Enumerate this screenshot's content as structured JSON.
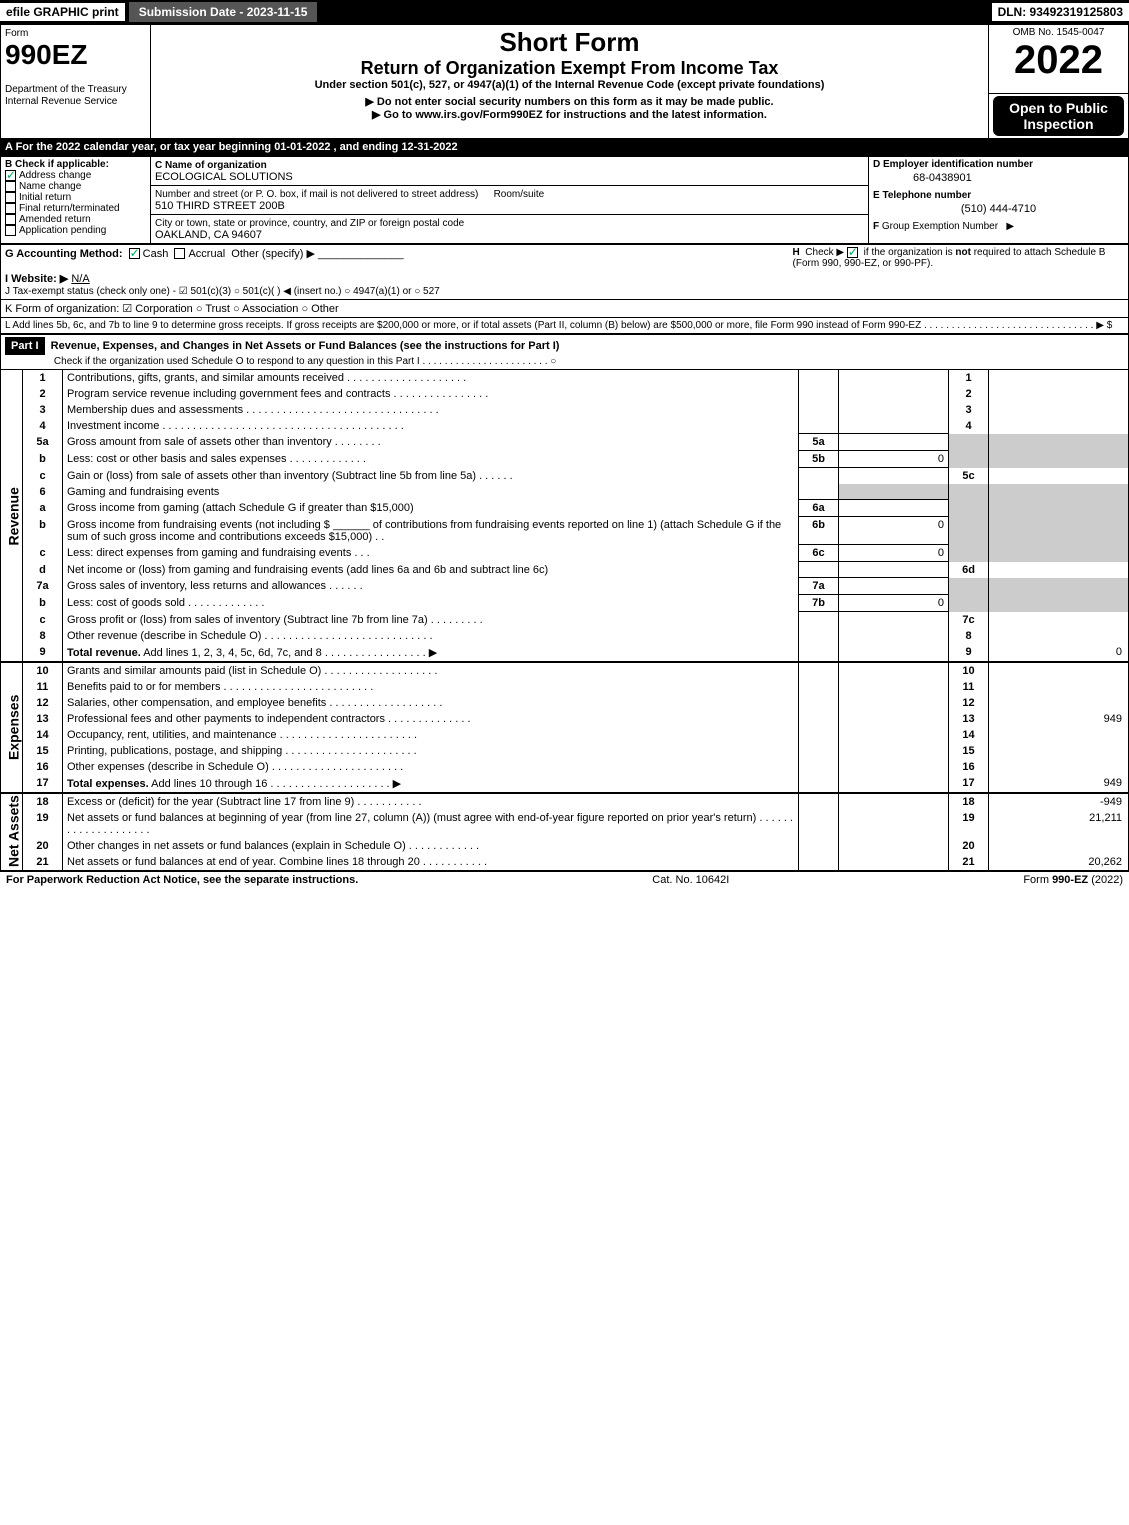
{
  "topbar": {
    "efile": "efile GRAPHIC print",
    "submission": "Submission Date - 2023-11-15",
    "dln": "DLN: 93492319125803"
  },
  "header": {
    "form_word": "Form",
    "form_no": "990EZ",
    "dept": "Department of the Treasury\nInternal Revenue Service",
    "short_form": "Short Form",
    "title": "Return of Organization Exempt From Income Tax",
    "subtitle": "Under section 501(c), 527, or 4947(a)(1) of the Internal Revenue Code (except private foundations)",
    "warn": "▶ Do not enter social security numbers on this form as it may be made public.",
    "goto": "▶ Go to www.irs.gov/Form990EZ for instructions and the latest information.",
    "omb": "OMB No. 1545-0047",
    "year": "2022",
    "open": "Open to Public Inspection"
  },
  "secA": "A  For the 2022 calendar year, or tax year beginning 01-01-2022  , and ending 12-31-2022",
  "secB": {
    "title": "B  Check if applicable:",
    "items": [
      "Address change",
      "Name change",
      "Initial return",
      "Final return/terminated",
      "Amended return",
      "Application pending"
    ],
    "checked": [
      true,
      false,
      false,
      false,
      false,
      false
    ]
  },
  "secC": {
    "label_name": "C Name of organization",
    "name": "ECOLOGICAL SOLUTIONS",
    "label_addr": "Number and street (or P. O. box, if mail is not delivered to street address)",
    "addr": "510 THIRD STREET 200B",
    "room_label": "Room/suite",
    "label_city": "City or town, state or province, country, and ZIP or foreign postal code",
    "city": "OAKLAND, CA  94607"
  },
  "secD": {
    "label": "D Employer identification number",
    "ein": "68-0438901"
  },
  "secE": {
    "label": "E Telephone number",
    "phone": "(510) 444-4710"
  },
  "secF": {
    "label": "F Group Exemption Number  ▶"
  },
  "secG": {
    "label": "G Accounting Method:",
    "cash": "Cash",
    "accrual": "Accrual",
    "other": "Other (specify) ▶"
  },
  "secH": {
    "text": "H  Check ▶ ☑ if the organization is not required to attach Schedule B (Form 990, 990-EZ, or 990-PF)."
  },
  "secI": {
    "label": "I Website: ▶",
    "val": "N/A"
  },
  "secJ": "J Tax-exempt status (check only one) - ☑ 501(c)(3)  ○ 501(c)(  ) ◀ (insert no.)  ○ 4947(a)(1) or  ○ 527",
  "secK": "K Form of organization:  ☑ Corporation  ○ Trust  ○ Association  ○ Other",
  "secL": "L Add lines 5b, 6c, and 7b to line 9 to determine gross receipts. If gross receipts are $200,000 or more, or if total assets (Part II, column (B) below) are $500,000 or more, file Form 990 instead of Form 990-EZ . . . . . . . . . . . . . . . . . . . . . . . . . . . . . . . ▶ $",
  "partI": {
    "label": "Part I",
    "title": "Revenue, Expenses, and Changes in Net Assets or Fund Balances (see the instructions for Part I)",
    "check": "Check if the organization used Schedule O to respond to any question in this Part I . . . . . . . . . . . . . . . . . . . . . . . ○"
  },
  "revenue_label": "Revenue",
  "expenses_label": "Expenses",
  "netassets_label": "Net Assets",
  "lines": {
    "1": {
      "n": "1",
      "t": "Contributions, gifts, grants, and similar amounts received . . . . . . . . . . . . . . . . . . . .",
      "box": "1",
      "v": ""
    },
    "2": {
      "n": "2",
      "t": "Program service revenue including government fees and contracts . . . . . . . . . . . . . . . .",
      "box": "2",
      "v": ""
    },
    "3": {
      "n": "3",
      "t": "Membership dues and assessments . . . . . . . . . . . . . . . . . . . . . . . . . . . . . . . .",
      "box": "3",
      "v": ""
    },
    "4": {
      "n": "4",
      "t": "Investment income . . . . . . . . . . . . . . . . . . . . . . . . . . . . . . . . . . . . . . . .",
      "box": "4",
      "v": ""
    },
    "5a": {
      "n": "5a",
      "t": "Gross amount from sale of assets other than inventory . . . . . . . .",
      "ibox": "5a",
      "iv": ""
    },
    "5b": {
      "n": "b",
      "t": "Less: cost or other basis and sales expenses . . . . . . . . . . . . .",
      "ibox": "5b",
      "iv": "0"
    },
    "5c": {
      "n": "c",
      "t": "Gain or (loss) from sale of assets other than inventory (Subtract line 5b from line 5a) . . . . . .",
      "box": "5c",
      "v": ""
    },
    "6": {
      "n": "6",
      "t": "Gaming and fundraising events"
    },
    "6a": {
      "n": "a",
      "t": "Gross income from gaming (attach Schedule G if greater than $15,000)",
      "ibox": "6a",
      "iv": ""
    },
    "6b": {
      "n": "b",
      "t1": "Gross income from fundraising events (not including $",
      "t2": "of contributions from fundraising events reported on line 1) (attach Schedule G if the sum of such gross income and contributions exceeds $15,000)   .   .",
      "ibox": "6b",
      "iv": "0"
    },
    "6c": {
      "n": "c",
      "t": "Less: direct expenses from gaming and fundraising events   .   .   .",
      "ibox": "6c",
      "iv": "0"
    },
    "6d": {
      "n": "d",
      "t": "Net income or (loss) from gaming and fundraising events (add lines 6a and 6b and subtract line 6c)",
      "box": "6d",
      "v": ""
    },
    "7a": {
      "n": "7a",
      "t": "Gross sales of inventory, less returns and allowances . . . . . .",
      "ibox": "7a",
      "iv": ""
    },
    "7b": {
      "n": "b",
      "t": "Less: cost of goods sold       .   .   .   .   .   .   .   .   .   .   .   .   .",
      "ibox": "7b",
      "iv": "0"
    },
    "7c": {
      "n": "c",
      "t": "Gross profit or (loss) from sales of inventory (Subtract line 7b from line 7a) . . . . . . . . .",
      "box": "7c",
      "v": ""
    },
    "8": {
      "n": "8",
      "t": "Other revenue (describe in Schedule O) . . . . . . . . . . . . . . . . . . . . . . . . . . . .",
      "box": "8",
      "v": ""
    },
    "9": {
      "n": "9",
      "t": "Total revenue. Add lines 1, 2, 3, 4, 5c, 6d, 7c, and 8  .  .  .  .  .  .  .  .  .  .  .  .  .  .  .  .  .  ▶",
      "box": "9",
      "v": "0"
    },
    "10": {
      "n": "10",
      "t": "Grants and similar amounts paid (list in Schedule O) .  .  .  .  .  .  .  .  .  .  .  .  .  .  .  .  .  .  .",
      "box": "10",
      "v": ""
    },
    "11": {
      "n": "11",
      "t": "Benefits paid to or for members     .  .  .  .  .  .  .  .  .  .  .  .  .  .  .  .  .  .  .  .  .  .  .  .  .",
      "box": "11",
      "v": ""
    },
    "12": {
      "n": "12",
      "t": "Salaries, other compensation, and employee benefits . .  .  .  .  .  .  .  .  .  .  .  .  .  .  .  .  .  .",
      "box": "12",
      "v": ""
    },
    "13": {
      "n": "13",
      "t": "Professional fees and other payments to independent contractors .  .  .  .  .  .  .  .  .  .  .  .  .  .",
      "box": "13",
      "v": "949"
    },
    "14": {
      "n": "14",
      "t": "Occupancy, rent, utilities, and maintenance .  .  .  .  .  .  .  .  .  .  .  .  .  .  .  .  .  .  .  .  .  .  .",
      "box": "14",
      "v": ""
    },
    "15": {
      "n": "15",
      "t": "Printing, publications, postage, and shipping .  .  .  .  .  .  .  .  .  .  .  .  .  .  .  .  .  .  .  .  .  .",
      "box": "15",
      "v": ""
    },
    "16": {
      "n": "16",
      "t": "Other expenses (describe in Schedule O)    .  .  .  .  .  .  .  .  .  .  .  .  .  .  .  .  .  .  .  .  .  .",
      "box": "16",
      "v": ""
    },
    "17": {
      "n": "17",
      "t": "Total expenses. Add lines 10 through 16     .  .  .  .  .  .  .  .  .  .  .  .  .  .  .  .  .  .  .  . ▶",
      "box": "17",
      "v": "949"
    },
    "18": {
      "n": "18",
      "t": "Excess or (deficit) for the year (Subtract line 17 from line 9)       .   .   .   .   .   .   .   .   .   .   .",
      "box": "18",
      "v": "-949"
    },
    "19": {
      "n": "19",
      "t": "Net assets or fund balances at beginning of year (from line 27, column (A)) (must agree with end-of-year figure reported on prior year's return) .  .  .  .  .  .  .  .  .  .  .  .  .  .  .  .  .  .  .  .",
      "box": "19",
      "v": "21,211"
    },
    "20": {
      "n": "20",
      "t": "Other changes in net assets or fund balances (explain in Schedule O) .  .  .  .  .  .  .  .  .  .  .  .",
      "box": "20",
      "v": ""
    },
    "21": {
      "n": "21",
      "t": "Net assets or fund balances at end of year. Combine lines 18 through 20 .  .  .  .  .  .  .  .  .  .  .",
      "box": "21",
      "v": "20,262"
    }
  },
  "footer": {
    "left": "For Paperwork Reduction Act Notice, see the separate instructions.",
    "mid": "Cat. No. 10642I",
    "right_a": "Form ",
    "right_b": "990-EZ",
    "right_c": " (2022)"
  }
}
